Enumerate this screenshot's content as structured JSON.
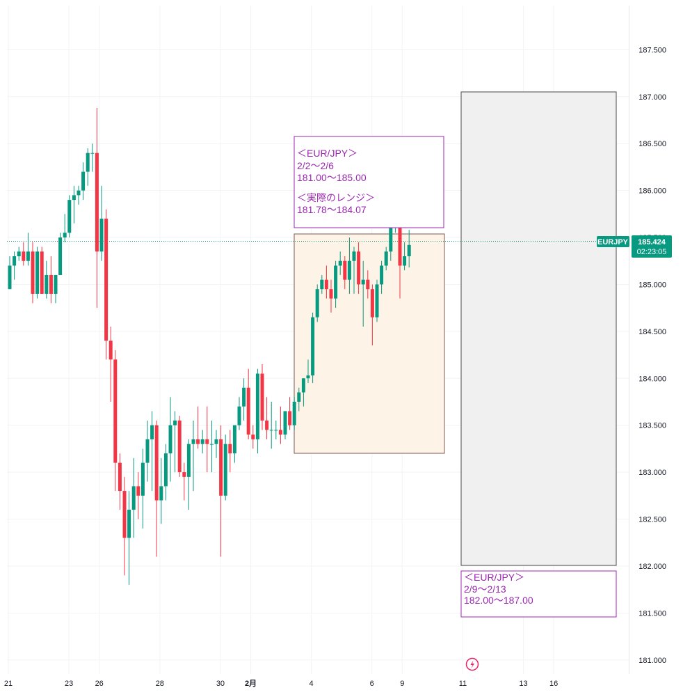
{
  "chart_data": {
    "type": "candlestick",
    "symbol": "EURJPY",
    "last_price": "185.424",
    "countdown": "02:23:05",
    "colors": {
      "up": "#089981",
      "down": "#f23645",
      "last_price_line": "#089981",
      "annotation": "#9c27b0",
      "range_fill_current": "#fdf3e6",
      "range_border_current": "#7c5a57",
      "range_fill_next": "#f0f0f0",
      "range_border_next": "#4a4a4a"
    },
    "ylim": [
      180.85,
      187.97
    ],
    "y_ticks": [
      "187.500",
      "187.000",
      "186.500",
      "186.000",
      "185.500",
      "185.000",
      "184.500",
      "184.000",
      "183.500",
      "183.000",
      "182.500",
      "182.000",
      "181.500",
      "181.000"
    ],
    "x_ticks": [
      {
        "label": "21",
        "bar": -0.3,
        "bold": false
      },
      {
        "label": "23",
        "bar": 12.9,
        "bold": false
      },
      {
        "label": "26",
        "bar": 19.5,
        "bold": false
      },
      {
        "label": "28",
        "bar": 32.7,
        "bold": false
      },
      {
        "label": "30",
        "bar": 45.9,
        "bold": false
      },
      {
        "label": "2月",
        "bar": 52.5,
        "bold": true
      },
      {
        "label": "4",
        "bar": 65.7,
        "bold": false
      },
      {
        "label": "6",
        "bar": 78.9,
        "bold": false
      },
      {
        "label": "9",
        "bar": 85.5,
        "bold": false
      },
      {
        "label": "11",
        "bar": 98.7,
        "bold": false
      },
      {
        "label": "13",
        "bar": 111.9,
        "bold": false
      },
      {
        "label": "16",
        "bar": 118.5,
        "bold": false
      }
    ],
    "candles": [
      [
        184.95,
        185.3,
        184.95,
        185.2
      ],
      [
        185.2,
        185.35,
        185.05,
        185.3
      ],
      [
        185.3,
        185.4,
        185.25,
        185.35
      ],
      [
        185.35,
        185.45,
        185.2,
        185.25
      ],
      [
        185.25,
        185.55,
        185.2,
        185.35
      ],
      [
        185.35,
        185.45,
        184.8,
        184.9
      ],
      [
        184.9,
        185.4,
        184.85,
        185.35
      ],
      [
        185.35,
        185.4,
        184.9,
        184.9
      ],
      [
        184.9,
        185.25,
        184.85,
        185.1
      ],
      [
        185.1,
        185.3,
        184.8,
        184.9
      ],
      [
        184.9,
        185.1,
        184.8,
        185.1
      ],
      [
        185.1,
        185.55,
        185.1,
        185.5
      ],
      [
        185.5,
        185.75,
        185.45,
        185.55
      ],
      [
        185.55,
        185.95,
        185.5,
        185.9
      ],
      [
        185.9,
        186.05,
        185.65,
        185.95
      ],
      [
        185.95,
        186.05,
        185.85,
        186.0
      ],
      [
        186.0,
        186.3,
        185.9,
        186.2
      ],
      [
        186.2,
        186.45,
        186.05,
        186.4
      ],
      [
        186.4,
        186.5,
        186.2,
        186.4
      ],
      [
        186.4,
        186.88,
        184.75,
        185.35
      ],
      [
        185.35,
        186.05,
        185.25,
        185.7
      ],
      [
        185.7,
        185.8,
        184.2,
        184.4
      ],
      [
        184.4,
        184.55,
        183.75,
        184.2
      ],
      [
        184.2,
        184.3,
        182.8,
        183.1
      ],
      [
        183.1,
        183.2,
        182.6,
        182.8
      ],
      [
        182.8,
        182.95,
        181.9,
        182.3
      ],
      [
        182.3,
        182.8,
        181.8,
        182.6
      ],
      [
        182.6,
        183.15,
        182.3,
        182.85
      ],
      [
        182.85,
        183.0,
        182.5,
        182.75
      ],
      [
        182.75,
        183.25,
        182.4,
        183.1
      ],
      [
        183.1,
        183.55,
        182.9,
        183.35
      ],
      [
        183.35,
        183.65,
        182.8,
        183.5
      ],
      [
        183.5,
        183.55,
        182.1,
        182.7
      ],
      [
        182.7,
        183.15,
        182.45,
        182.85
      ],
      [
        182.85,
        183.3,
        182.7,
        183.2
      ],
      [
        183.2,
        183.8,
        182.9,
        183.5
      ],
      [
        183.5,
        183.65,
        183.0,
        183.55
      ],
      [
        183.55,
        183.6,
        182.95,
        183.0
      ],
      [
        183.0,
        183.1,
        182.7,
        182.95
      ],
      [
        182.95,
        183.35,
        182.6,
        183.3
      ],
      [
        183.3,
        183.55,
        182.8,
        183.35
      ],
      [
        183.35,
        183.7,
        183.25,
        183.3
      ],
      [
        183.3,
        183.45,
        183.2,
        183.35
      ],
      [
        183.35,
        183.7,
        183.0,
        183.3
      ],
      [
        183.3,
        183.55,
        183.0,
        183.3
      ],
      [
        183.3,
        183.45,
        183.15,
        183.35
      ],
      [
        183.35,
        183.5,
        182.1,
        182.75
      ],
      [
        182.75,
        183.4,
        182.7,
        183.3
      ],
      [
        183.3,
        183.45,
        183.0,
        183.2
      ],
      [
        183.2,
        183.5,
        183.1,
        183.5
      ],
      [
        183.5,
        183.8,
        183.45,
        183.7
      ],
      [
        183.7,
        184.0,
        183.55,
        183.9
      ],
      [
        183.9,
        184.1,
        183.35,
        183.4
      ],
      [
        183.4,
        183.5,
        183.25,
        183.35
      ],
      [
        183.35,
        184.1,
        183.2,
        184.05
      ],
      [
        184.05,
        184.15,
        183.45,
        183.55
      ],
      [
        183.55,
        183.8,
        183.35,
        183.45
      ],
      [
        183.45,
        183.75,
        183.25,
        183.45
      ],
      [
        183.45,
        183.55,
        183.35,
        183.45
      ],
      [
        183.45,
        183.7,
        183.3,
        183.4
      ],
      [
        183.4,
        183.65,
        183.35,
        183.65
      ],
      [
        183.65,
        183.8,
        183.45,
        183.5
      ],
      [
        183.5,
        183.8,
        183.45,
        183.75
      ],
      [
        183.75,
        183.9,
        183.65,
        183.85
      ],
      [
        183.85,
        184.0,
        183.7,
        184.0
      ],
      [
        184.0,
        184.2,
        183.95,
        184.03
      ],
      [
        184.03,
        184.7,
        183.95,
        184.65
      ],
      [
        184.65,
        185.0,
        184.6,
        184.95
      ],
      [
        184.95,
        185.1,
        184.9,
        185.05
      ],
      [
        185.05,
        185.2,
        184.85,
        184.95
      ],
      [
        184.95,
        185.05,
        184.7,
        184.85
      ],
      [
        184.85,
        185.25,
        184.75,
        185.2
      ],
      [
        185.2,
        185.35,
        185.1,
        185.25
      ],
      [
        185.25,
        185.3,
        184.95,
        185.05
      ],
      [
        185.05,
        185.5,
        184.9,
        185.25
      ],
      [
        185.25,
        185.4,
        184.9,
        185.35
      ],
      [
        185.35,
        185.45,
        184.9,
        185.0
      ],
      [
        185.0,
        185.25,
        184.55,
        185.05
      ],
      [
        185.05,
        185.15,
        184.85,
        184.95
      ],
      [
        184.95,
        185.0,
        184.35,
        184.65
      ],
      [
        184.65,
        185.05,
        184.6,
        185.0
      ],
      [
        185.0,
        185.25,
        184.9,
        185.2
      ],
      [
        185.2,
        185.4,
        185.15,
        185.35
      ],
      [
        185.35,
        185.65,
        185.25,
        185.6
      ],
      [
        185.6,
        185.8,
        185.55,
        185.75
      ],
      [
        185.75,
        186.25,
        184.85,
        185.2
      ],
      [
        185.2,
        185.45,
        185.15,
        185.3
      ],
      [
        185.3,
        185.58,
        185.18,
        185.42
      ]
    ]
  },
  "annotations": {
    "current_week": {
      "title": "＜EUR/JPY＞",
      "dates": "2/2〜2/6",
      "forecast": "181.00〜185.00",
      "actual_title": "＜実際のレンジ＞",
      "actual": "181.78〜184.07"
    },
    "next_week": {
      "title": "＜EUR/JPY＞",
      "dates": "2/9〜2/13",
      "forecast": "182.00〜187.00"
    }
  }
}
